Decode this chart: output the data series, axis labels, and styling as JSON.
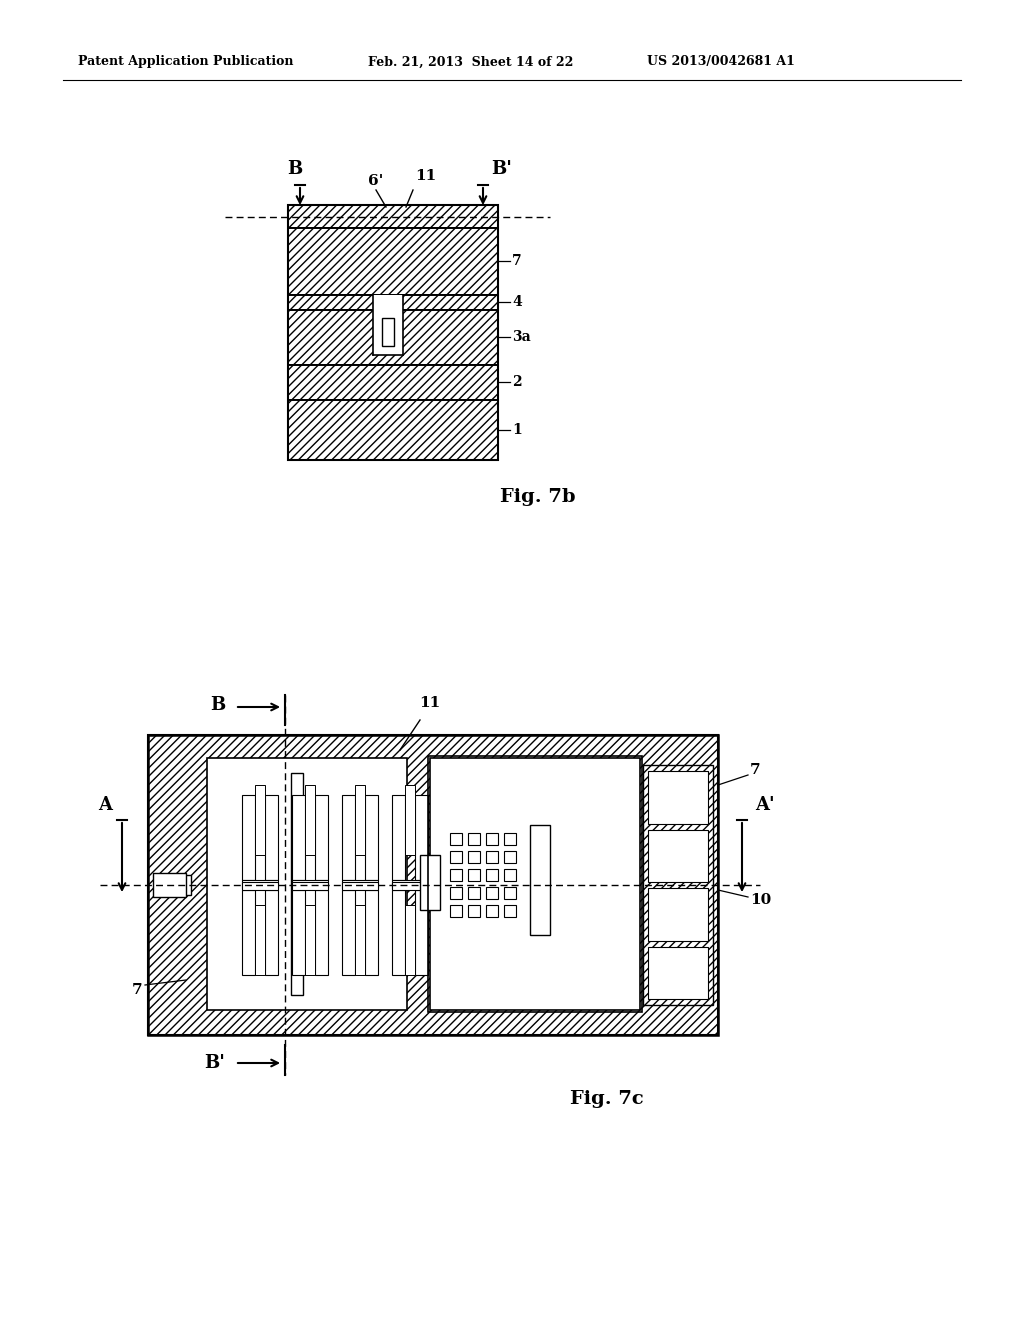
{
  "bg_color": "#ffffff",
  "header_left": "Patent Application Publication",
  "header_mid": "Feb. 21, 2013  Sheet 14 of 22",
  "header_right": "US 2013/0042681 A1",
  "fig7b_label": "Fig. 7b",
  "fig7c_label": "Fig. 7c"
}
